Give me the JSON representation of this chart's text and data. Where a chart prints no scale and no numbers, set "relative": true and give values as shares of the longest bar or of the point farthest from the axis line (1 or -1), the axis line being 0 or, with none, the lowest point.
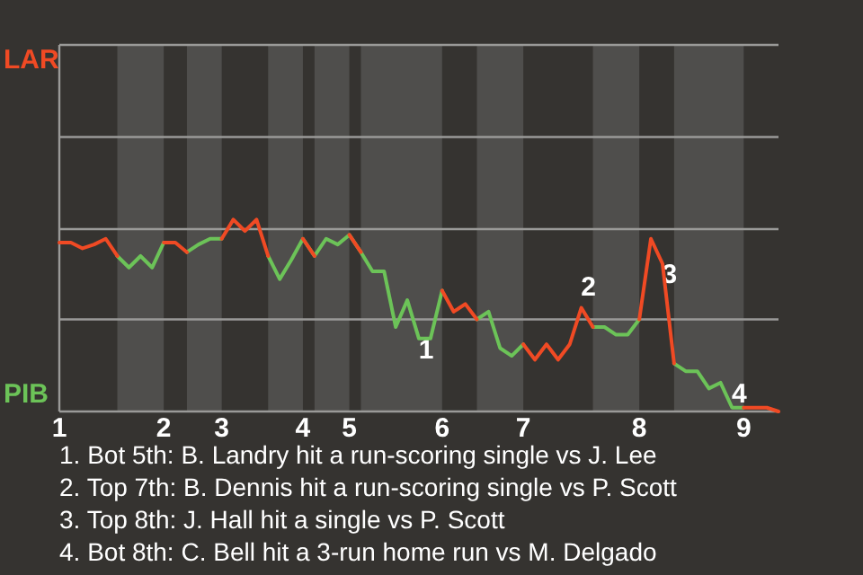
{
  "chart_data": {
    "type": "line",
    "relative": true,
    "categories": [
      "1",
      null,
      null,
      null,
      null,
      null,
      null,
      null,
      null,
      "2",
      null,
      null,
      null,
      null,
      "3",
      null,
      null,
      null,
      null,
      null,
      null,
      "4",
      null,
      null,
      null,
      "5",
      null,
      null,
      null,
      null,
      null,
      null,
      null,
      "6",
      null,
      null,
      null,
      null,
      null,
      null,
      "7",
      null,
      null,
      null,
      null,
      null,
      null,
      null,
      null,
      null,
      "8",
      null,
      null,
      null,
      null,
      null,
      null,
      null,
      null,
      "9",
      null,
      null,
      null
    ],
    "series": [
      {
        "name": "LAR",
        "color": "#f04a24",
        "values": [
          0.88,
          0.88,
          0.85,
          0.87,
          0.9,
          0.81,
          null,
          null,
          null,
          0.88,
          0.88,
          0.83,
          null,
          null,
          0.9,
          1,
          0.94,
          1,
          0.81,
          null,
          null,
          0.9,
          0.81,
          null,
          null,
          0.92,
          0.83,
          null,
          null,
          null,
          null,
          null,
          null,
          0.63,
          0.52,
          0.56,
          0.48,
          null,
          null,
          null,
          0.35,
          0.27,
          0.35,
          0.27,
          0.35,
          0.54,
          0.44,
          null,
          null,
          null,
          0.48,
          0.9,
          0.77,
          0.25,
          null,
          null,
          null,
          null,
          null,
          0.02,
          0.02,
          0.02,
          0
        ]
      },
      {
        "name": "PIB",
        "color": "#6cc358",
        "values": [
          null,
          null,
          null,
          null,
          null,
          0.81,
          0.75,
          0.81,
          0.75,
          0.88,
          null,
          0.83,
          0.87,
          0.9,
          0.9,
          null,
          null,
          null,
          0.81,
          0.69,
          0.79,
          0.9,
          0.81,
          0.9,
          0.87,
          0.92,
          0.83,
          0.73,
          0.73,
          0.44,
          0.58,
          0.38,
          0.38,
          0.63,
          null,
          null,
          0.48,
          0.52,
          0.33,
          0.29,
          0.35,
          null,
          null,
          null,
          null,
          null,
          0.44,
          0.44,
          0.4,
          0.4,
          0.48,
          null,
          null,
          0.25,
          0.21,
          0.21,
          0.12,
          0.15,
          0.02,
          0.02,
          null,
          null,
          null
        ]
      }
    ],
    "ref_lines": [
      {
        "axis": "y",
        "value": 0.48,
        "color": "#9a9a98"
      },
      {
        "axis": "y",
        "value": 0.95,
        "color": "#9a9a98"
      },
      {
        "axis": "y",
        "value": 1.43,
        "color": "#9a9a98"
      },
      {
        "axis": "y",
        "value": 1.91,
        "color": "#9a9a98"
      }
    ],
    "annotations": [
      {
        "text": "1",
        "y": 0.38
      },
      {
        "text": "2",
        "y": 0.54
      },
      {
        "text": "3",
        "y": 0.77
      },
      {
        "text": "4",
        "y": 0.02
      },
      "1. Bot 5th: B. Landry hit a run-scoring single vs J. Lee",
      "2. Top 7th: B. Dennis hit a run-scoring single vs P. Scott",
      "3. Top 8th: J. Hall hit a single vs P. Scott",
      "4. Bot 8th: C. Bell hit a 3-run home run vs M. Delgado"
    ]
  }
}
